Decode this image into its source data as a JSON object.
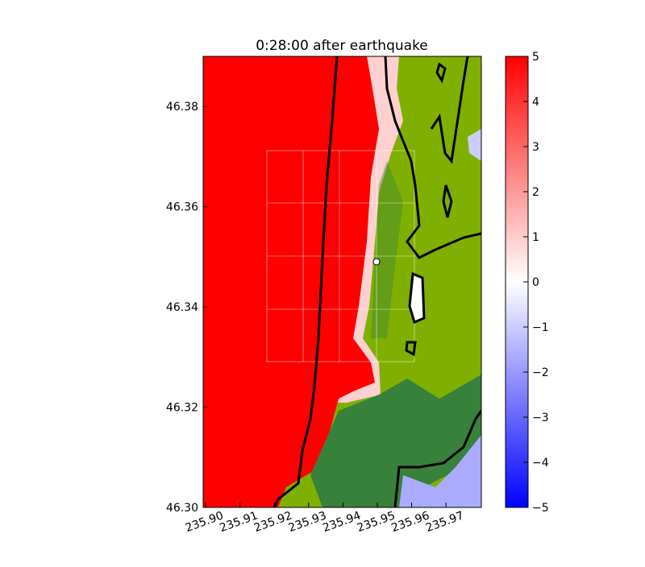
{
  "chart_data": {
    "type": "map",
    "title": "0:28:00 after earthquake",
    "xlim": [
      235.8993,
      235.9803
    ],
    "xticks": [
      {
        "value": 235.9,
        "label": "235.90"
      },
      235.91,
      235.92,
      235.93,
      235.94,
      235.95,
      235.96,
      235.97
    ],
    "ylim": [
      46.3,
      46.39
    ],
    "yticks": [
      {
        "value": 46.3,
        "label": "46.30"
      },
      46.32,
      46.34,
      46.36,
      46.38
    ],
    "colorbar": {
      "lim": [
        -5,
        5
      ],
      "ticks": [
        {
          "value": -5,
          "label": "−5"
        },
        {
          "value": -4,
          "label": "−4"
        },
        {
          "value": -3,
          "label": "−3"
        },
        {
          "value": -2,
          "label": "−2"
        },
        {
          "value": -1,
          "label": "−1"
        },
        0,
        1,
        2,
        3,
        4,
        5
      ],
      "colors": [
        "#0000ff",
        "#ffffff",
        "#ff0000"
      ]
    }
  }
}
